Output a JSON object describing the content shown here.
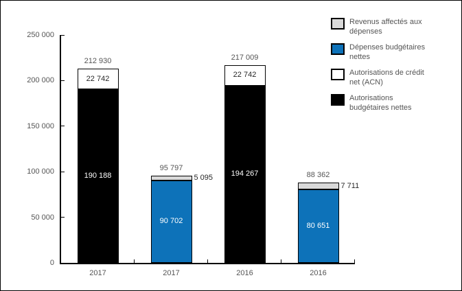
{
  "chart_data": {
    "type": "bar",
    "stacked": true,
    "grid": false,
    "legend_position": "top-right",
    "categories": [
      "2017",
      "2017",
      "2016",
      "2016"
    ],
    "y_axis": {
      "min": 0,
      "max": 250000,
      "ticks": [
        {
          "value": 0,
          "label": "0"
        },
        {
          "value": 50000,
          "label": "50 000"
        },
        {
          "value": 100000,
          "label": "100 000"
        },
        {
          "value": 150000,
          "label": "150 000"
        },
        {
          "value": 200000,
          "label": "200 000"
        },
        {
          "value": 250000,
          "label": "250 000"
        }
      ]
    },
    "bars": [
      {
        "category": "2017",
        "total": 212930,
        "total_label": "212 930",
        "segments": [
          {
            "series": "Autorisations budgétaires nettes",
            "value": 190188,
            "label": "190 188",
            "color": "#000000",
            "text_color": "#ffffff",
            "label_position": "inside"
          },
          {
            "series": "Autorisations de crédit net (ACN)",
            "value": 22742,
            "label": "22 742",
            "color": "#ffffff",
            "text_color": "#262626",
            "label_position": "inside"
          }
        ]
      },
      {
        "category": "2017",
        "total": 95797,
        "total_label": "95 797",
        "segments": [
          {
            "series": "Dépenses budgétaires nettes",
            "value": 90702,
            "label": "90 702",
            "color": "#0d72b9",
            "text_color": "#ffffff",
            "label_position": "inside"
          },
          {
            "series": "Revenus affectés aux dépenses",
            "value": 5095,
            "label": "5 095",
            "color": "#d9d9d9",
            "text_color": "#262626",
            "label_position": "right"
          }
        ]
      },
      {
        "category": "2016",
        "total": 217009,
        "total_label": "217 009",
        "segments": [
          {
            "series": "Autorisations budgétaires nettes",
            "value": 194267,
            "label": "194 267",
            "color": "#000000",
            "text_color": "#ffffff",
            "label_position": "inside"
          },
          {
            "series": "Autorisations de crédit net (ACN)",
            "value": 22742,
            "label": "22 742",
            "color": "#ffffff",
            "text_color": "#262626",
            "label_position": "inside"
          }
        ]
      },
      {
        "category": "2016",
        "total": 88362,
        "total_label": "88 362",
        "segments": [
          {
            "series": "Dépenses budgétaires nettes",
            "value": 80651,
            "label": "80 651",
            "color": "#0d72b9",
            "text_color": "#ffffff",
            "label_position": "inside"
          },
          {
            "series": "Revenus affectés aux dépenses",
            "value": 7711,
            "label": "7 711",
            "color": "#d9d9d9",
            "text_color": "#262626",
            "label_position": "right"
          }
        ]
      }
    ],
    "legend": [
      {
        "color": "#d9d9d9",
        "lines": [
          "Revenus affectés aux",
          "dépenses"
        ],
        "label": "Revenus affectés aux dépenses"
      },
      {
        "color": "#0d72b9",
        "lines": [
          "Dépenses budgétaires",
          "nettes"
        ],
        "label": "Dépenses budgétaires nettes"
      },
      {
        "color": "#ffffff",
        "lines": [
          "Autorisations de crédit",
          "net (ACN)"
        ],
        "label": "Autorisations de crédit net (ACN)"
      },
      {
        "color": "#000000",
        "lines": [
          "Autorisations",
          "budgétaires nettes"
        ],
        "label": "Autorisations budgétaires nettes"
      }
    ],
    "colors": {
      "accent_blue": "#0d72b9",
      "fill_gray": "#d9d9d9",
      "text_gray": "#545454",
      "axis_black": "#000000"
    }
  }
}
